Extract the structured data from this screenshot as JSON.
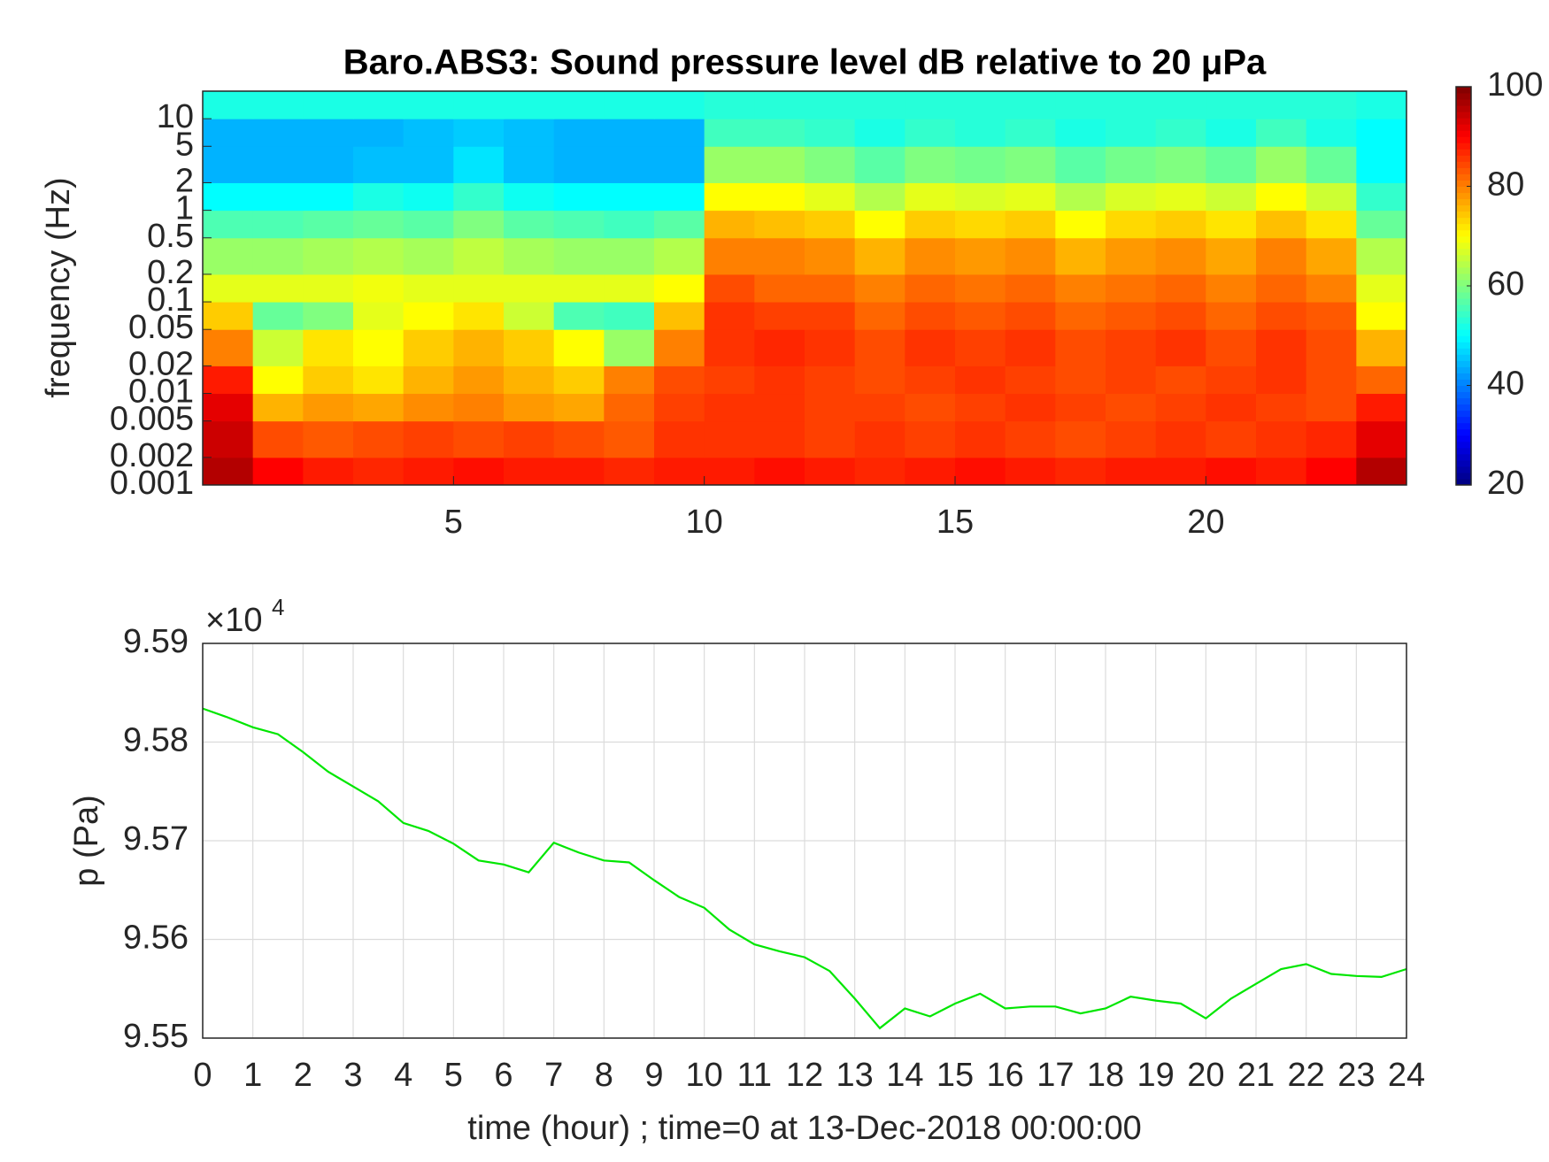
{
  "chart_data": [
    {
      "type": "heatmap",
      "title": "Baro.ABS3: Sound pressure level dB relative to 20 μPa",
      "y_label": "frequency (Hz)",
      "colormap": "jet",
      "xbins": [
        0,
        1,
        2,
        3,
        4,
        5,
        6,
        7,
        8,
        9,
        10,
        11,
        12,
        13,
        14,
        15,
        16,
        17,
        18,
        19,
        20,
        21,
        22,
        23,
        24
      ],
      "ybins": [
        0.001,
        0.002,
        0.005,
        0.01,
        0.02,
        0.05,
        0.1,
        0.2,
        0.5,
        1,
        2,
        5,
        10,
        20
      ],
      "z": [
        [
          96,
          90,
          88,
          87,
          88,
          89,
          88,
          88,
          87,
          88,
          88,
          89,
          88,
          87,
          88,
          89,
          88,
          87,
          88,
          88,
          89,
          88,
          90,
          96
        ],
        [
          94,
          84,
          83,
          84,
          85,
          84,
          85,
          84,
          83,
          86,
          86,
          86,
          85,
          86,
          85,
          86,
          85,
          84,
          85,
          86,
          85,
          86,
          87,
          92
        ],
        [
          92,
          76,
          78,
          77,
          79,
          80,
          78,
          77,
          82,
          85,
          86,
          86,
          85,
          85,
          84,
          85,
          86,
          85,
          84,
          85,
          86,
          85,
          84,
          88
        ],
        [
          88,
          70,
          74,
          72,
          76,
          78,
          76,
          74,
          80,
          84,
          85,
          86,
          85,
          84,
          85,
          86,
          85,
          84,
          85,
          84,
          85,
          86,
          84,
          82
        ],
        [
          80,
          66,
          72,
          70,
          74,
          76,
          74,
          70,
          62,
          80,
          86,
          87,
          86,
          84,
          86,
          85,
          86,
          84,
          85,
          86,
          84,
          86,
          84,
          76
        ],
        [
          74,
          58,
          60,
          68,
          70,
          72,
          66,
          56,
          55,
          75,
          86,
          85,
          85,
          82,
          84,
          83,
          84,
          82,
          83,
          84,
          82,
          84,
          83,
          70
        ],
        [
          68,
          68,
          68,
          69,
          68,
          68,
          68,
          68,
          68,
          70,
          84,
          82,
          82,
          80,
          82,
          81,
          82,
          80,
          81,
          82,
          80,
          82,
          80,
          68
        ],
        [
          62,
          62,
          63,
          64,
          63,
          65,
          63,
          62,
          62,
          64,
          80,
          80,
          79,
          76,
          79,
          78,
          79,
          76,
          78,
          79,
          77,
          80,
          77,
          64
        ],
        [
          56,
          56,
          57,
          58,
          57,
          60,
          57,
          56,
          55,
          57,
          76,
          75,
          74,
          70,
          74,
          73,
          74,
          70,
          73,
          74,
          72,
          75,
          72,
          58
        ],
        [
          50,
          50,
          50,
          52,
          51,
          54,
          51,
          50,
          50,
          50,
          70,
          70,
          68,
          64,
          68,
          67,
          68,
          64,
          67,
          68,
          66,
          70,
          66,
          54
        ],
        [
          44,
          44,
          44,
          45,
          45,
          48,
          45,
          44,
          44,
          44,
          62,
          62,
          60,
          57,
          60,
          59,
          60,
          57,
          59,
          60,
          58,
          62,
          58,
          50
        ],
        [
          44,
          44,
          44,
          44,
          45,
          46,
          45,
          44,
          44,
          44,
          55,
          55,
          54,
          52,
          54,
          53,
          54,
          52,
          53,
          54,
          52,
          55,
          52,
          50
        ],
        [
          52,
          52,
          52,
          52,
          52,
          52,
          52,
          52,
          52,
          52,
          53,
          53,
          53,
          53,
          53,
          53,
          53,
          53,
          53,
          53,
          53,
          53,
          53,
          52
        ]
      ],
      "xlim": [
        0,
        24
      ],
      "xticks": [
        5,
        10,
        15,
        20
      ],
      "ylim": [
        0.001,
        20
      ],
      "y_log": true,
      "yticks": [
        0.001,
        0.002,
        0.005,
        0.01,
        0.02,
        0.05,
        0.1,
        0.2,
        0.5,
        1,
        2,
        5,
        10
      ],
      "clim": [
        20,
        100
      ],
      "cticks": [
        20,
        40,
        60,
        80,
        100
      ]
    },
    {
      "type": "line",
      "x_label": "time (hour) ; time=0 at 13-Dec-2018 00:00:00",
      "y_label": "p (Pa)",
      "y_multiplier": "×10",
      "y_multiplier_exponent": "4",
      "color": "#00e600",
      "grid": true,
      "x": [
        0,
        0.5,
        1,
        1.5,
        2,
        2.5,
        3,
        3.5,
        4,
        4.5,
        5,
        5.5,
        6,
        6.5,
        7,
        7.5,
        8,
        8.5,
        9,
        9.5,
        10,
        10.5,
        11,
        11.5,
        12,
        12.5,
        13,
        13.5,
        14,
        14.5,
        15,
        15.5,
        16,
        16.5,
        17,
        17.5,
        18,
        18.5,
        19,
        19.5,
        20,
        20.5,
        21,
        21.5,
        22,
        22.5,
        23,
        23.5,
        24
      ],
      "values": [
        95834,
        95825,
        95815,
        95808,
        95790,
        95770,
        95755,
        95740,
        95718,
        95710,
        95697,
        95680,
        95676,
        95668,
        95698,
        95688,
        95680,
        95678,
        95660,
        95643,
        95632,
        95610,
        95595,
        95588,
        95582,
        95568,
        95540,
        95510,
        95530,
        95522,
        95535,
        95545,
        95530,
        95532,
        95532,
        95525,
        95530,
        95542,
        95538,
        95535,
        95520,
        95540,
        95555,
        95570,
        95575,
        95565,
        95563,
        95562,
        95570
      ],
      "xlim": [
        0,
        24
      ],
      "xticks": [
        0,
        1,
        2,
        3,
        4,
        5,
        6,
        7,
        8,
        9,
        10,
        11,
        12,
        13,
        14,
        15,
        16,
        17,
        18,
        19,
        20,
        21,
        22,
        23,
        24
      ],
      "ylim": [
        95500,
        95900
      ],
      "yticks": [
        {
          "value": 95500,
          "label": "9.55"
        },
        {
          "value": 95600,
          "label": "9.56"
        },
        {
          "value": 95700,
          "label": "9.57"
        },
        {
          "value": 95800,
          "label": "9.58"
        },
        {
          "value": 95900,
          "label": "9.59"
        }
      ]
    }
  ]
}
